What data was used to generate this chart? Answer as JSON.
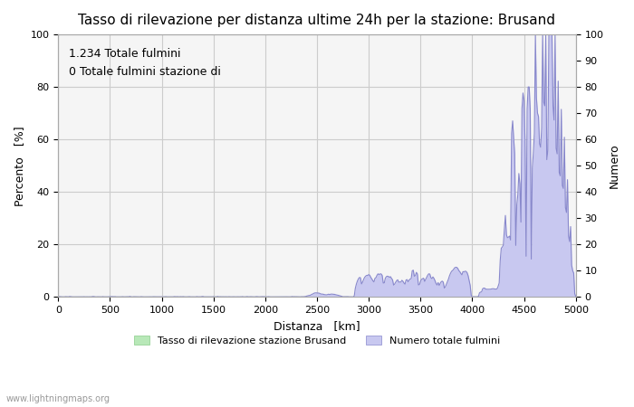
{
  "title": "Tasso di rilevazione per distanza ultime 24h per la stazione: Brusand",
  "xlabel": "Distanza   [km]",
  "ylabel_left": "Percento   [%]",
  "ylabel_right": "Numero",
  "annotation_line1": "1.234 Totale fulmini",
  "annotation_line2": "0 Totale fulmini stazione di",
  "legend_green": "Tasso di rilevazione stazione Brusand",
  "legend_blue": "Numero totale fulmini",
  "watermark": "www.lightningmaps.org",
  "xlim": [
    0,
    5000
  ],
  "ylim_left": [
    0,
    100
  ],
  "ylim_right": [
    0,
    100
  ],
  "xticks": [
    0,
    500,
    1000,
    1500,
    2000,
    2500,
    3000,
    3500,
    4000,
    4500,
    5000
  ],
  "yticks_left": [
    0,
    20,
    40,
    60,
    80,
    100
  ],
  "yticks_right": [
    0,
    10,
    20,
    30,
    40,
    50,
    60,
    70,
    80,
    90,
    100
  ],
  "bg_color": "#ffffff",
  "plot_bg_color": "#f5f5f5",
  "grid_color": "#cccccc",
  "green_fill": "#b8e8b8",
  "green_line": "#88cc88",
  "blue_fill": "#c8c8f0",
  "blue_line": "#8888cc",
  "title_fontsize": 11,
  "label_fontsize": 9,
  "tick_fontsize": 8,
  "legend_fontsize": 8,
  "watermark_fontsize": 7
}
